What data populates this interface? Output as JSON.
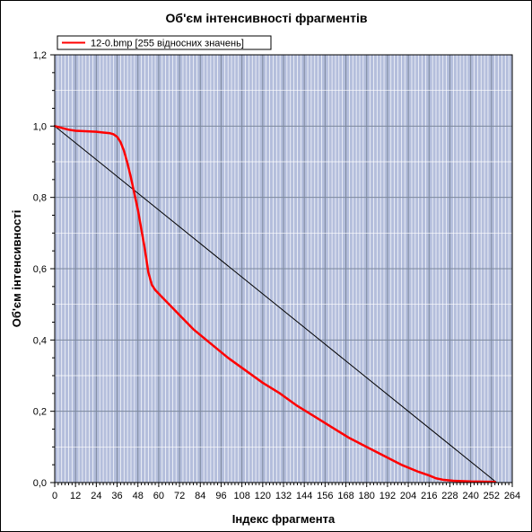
{
  "chart_data": {
    "type": "line",
    "title": "Об'єм інтенсивності фрагментів",
    "xlabel": "Індекс  фрагмента",
    "ylabel": "Об'єм інтенсивності",
    "xlim": [
      0,
      264
    ],
    "ylim": [
      0,
      1.2
    ],
    "x_ticks": [
      "0",
      "12",
      "24",
      "36",
      "48",
      "60",
      "72",
      "84",
      "96",
      "108",
      "120",
      "132",
      "144",
      "156",
      "168",
      "180",
      "192",
      "204",
      "216",
      "228",
      "240",
      "252",
      "264"
    ],
    "y_ticks": [
      "0,0",
      "0,2",
      "0,4",
      "0,6",
      "0,8",
      "1,0",
      "1,2"
    ],
    "grid": true,
    "legend_position": "top-left",
    "plot_background": "#b4bedc",
    "series": [
      {
        "name": "12-0.bmp [255 відносних значень]",
        "color": "#ff0000",
        "x": [
          0,
          4,
          8,
          12,
          16,
          20,
          24,
          28,
          32,
          34,
          36,
          38,
          40,
          42,
          44,
          46,
          48,
          50,
          52,
          54,
          56,
          58,
          60,
          64,
          68,
          72,
          80,
          90,
          100,
          110,
          120,
          130,
          140,
          150,
          160,
          170,
          180,
          190,
          200,
          210,
          216,
          220,
          224,
          230,
          240,
          254
        ],
        "y": [
          1.0,
          0.995,
          0.99,
          0.987,
          0.986,
          0.985,
          0.984,
          0.982,
          0.98,
          0.977,
          0.97,
          0.955,
          0.93,
          0.895,
          0.855,
          0.81,
          0.765,
          0.71,
          0.655,
          0.59,
          0.555,
          0.54,
          0.53,
          0.51,
          0.49,
          0.47,
          0.43,
          0.39,
          0.35,
          0.315,
          0.28,
          0.25,
          0.215,
          0.185,
          0.155,
          0.125,
          0.1,
          0.075,
          0.05,
          0.03,
          0.02,
          0.012,
          0.008,
          0.005,
          0.003,
          0.002
        ]
      },
      {
        "name": "",
        "color": "#000000",
        "x": [
          0,
          255
        ],
        "y": [
          1.0,
          0.0
        ]
      }
    ]
  }
}
